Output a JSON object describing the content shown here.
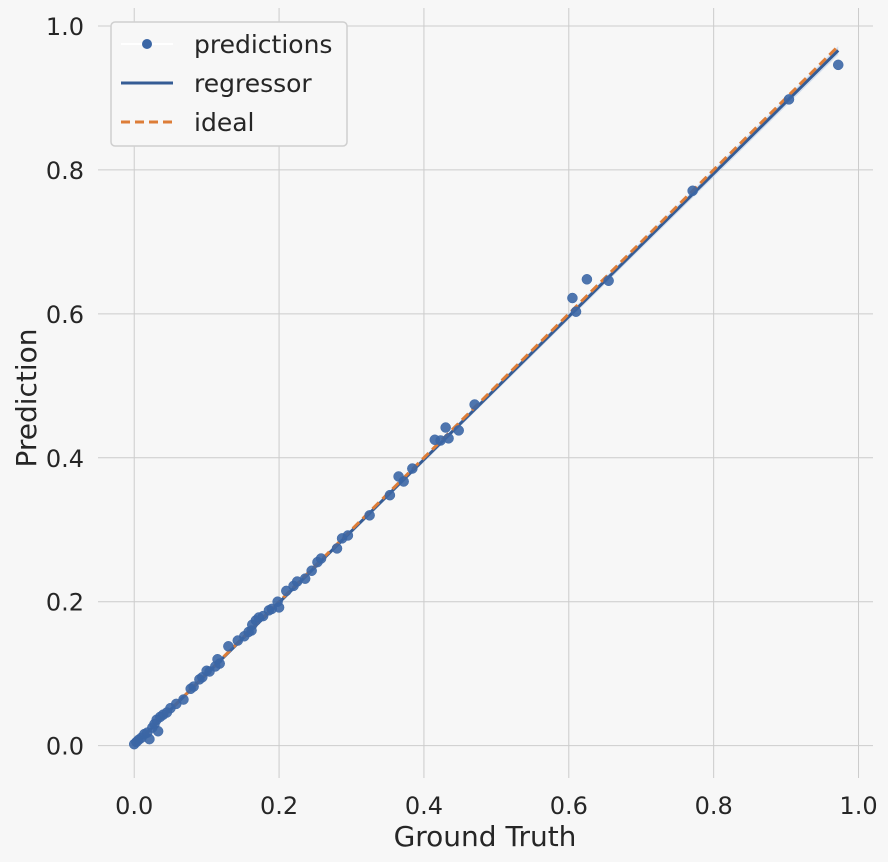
{
  "chart_data": {
    "type": "scatter",
    "xlabel": "Ground Truth",
    "ylabel": "Prediction",
    "xlim": [
      -0.05,
      1.02
    ],
    "ylim": [
      -0.045,
      1.025
    ],
    "xticks": [
      0.0,
      0.2,
      0.4,
      0.6,
      0.8,
      1.0
    ],
    "yticks": [
      0.0,
      0.2,
      0.4,
      0.6,
      0.8,
      1.0
    ],
    "xtick_labels": [
      "0.0",
      "0.2",
      "0.4",
      "0.6",
      "0.8",
      "1.0"
    ],
    "ytick_labels": [
      "0.0",
      "0.2",
      "0.4",
      "0.6",
      "0.8",
      "1.0"
    ],
    "grid": true,
    "legend_position": "upper-left",
    "colors": {
      "background": "#f7f7f7",
      "grid": "#cccccc",
      "points": "#3b66a5",
      "regressor": "#355c95",
      "ideal": "#dd7d38",
      "band": "#cbd7ea"
    },
    "series": [
      {
        "name": "predictions",
        "kind": "points",
        "points": [
          [
            0.0,
            0.002
          ],
          [
            0.003,
            0.005
          ],
          [
            0.006,
            0.008
          ],
          [
            0.01,
            0.011
          ],
          [
            0.014,
            0.016
          ],
          [
            0.018,
            0.018
          ],
          [
            0.021,
            0.009
          ],
          [
            0.025,
            0.025
          ],
          [
            0.028,
            0.03
          ],
          [
            0.031,
            0.036
          ],
          [
            0.033,
            0.02
          ],
          [
            0.036,
            0.04
          ],
          [
            0.04,
            0.043
          ],
          [
            0.045,
            0.046
          ],
          [
            0.05,
            0.052
          ],
          [
            0.058,
            0.058
          ],
          [
            0.068,
            0.064
          ],
          [
            0.078,
            0.079
          ],
          [
            0.082,
            0.082
          ],
          [
            0.09,
            0.092
          ],
          [
            0.094,
            0.095
          ],
          [
            0.1,
            0.104
          ],
          [
            0.104,
            0.103
          ],
          [
            0.112,
            0.11
          ],
          [
            0.115,
            0.12
          ],
          [
            0.118,
            0.114
          ],
          [
            0.13,
            0.138
          ],
          [
            0.143,
            0.146
          ],
          [
            0.152,
            0.152
          ],
          [
            0.158,
            0.158
          ],
          [
            0.162,
            0.16
          ],
          [
            0.163,
            0.168
          ],
          [
            0.168,
            0.174
          ],
          [
            0.172,
            0.178
          ],
          [
            0.178,
            0.18
          ],
          [
            0.186,
            0.188
          ],
          [
            0.19,
            0.19
          ],
          [
            0.198,
            0.2
          ],
          [
            0.2,
            0.192
          ],
          [
            0.21,
            0.215
          ],
          [
            0.22,
            0.222
          ],
          [
            0.225,
            0.228
          ],
          [
            0.236,
            0.232
          ],
          [
            0.245,
            0.243
          ],
          [
            0.253,
            0.255
          ],
          [
            0.258,
            0.26
          ],
          [
            0.28,
            0.274
          ],
          [
            0.287,
            0.288
          ],
          [
            0.295,
            0.292
          ],
          [
            0.325,
            0.32
          ],
          [
            0.353,
            0.348
          ],
          [
            0.365,
            0.374
          ],
          [
            0.372,
            0.367
          ],
          [
            0.384,
            0.385
          ],
          [
            0.415,
            0.425
          ],
          [
            0.423,
            0.424
          ],
          [
            0.43,
            0.442
          ],
          [
            0.434,
            0.427
          ],
          [
            0.448,
            0.438
          ],
          [
            0.47,
            0.474
          ],
          [
            0.605,
            0.622
          ],
          [
            0.61,
            0.603
          ],
          [
            0.625,
            0.648
          ],
          [
            0.655,
            0.646
          ],
          [
            0.771,
            0.771
          ],
          [
            0.904,
            0.898
          ],
          [
            0.972,
            0.946
          ]
        ]
      },
      {
        "name": "regressor",
        "kind": "line",
        "points": [
          [
            0.0,
            0.0
          ],
          [
            0.972,
            0.966
          ]
        ]
      },
      {
        "name": "ideal",
        "kind": "dashed-line",
        "points": [
          [
            0.0,
            0.0
          ],
          [
            0.972,
            0.972
          ]
        ]
      }
    ]
  }
}
